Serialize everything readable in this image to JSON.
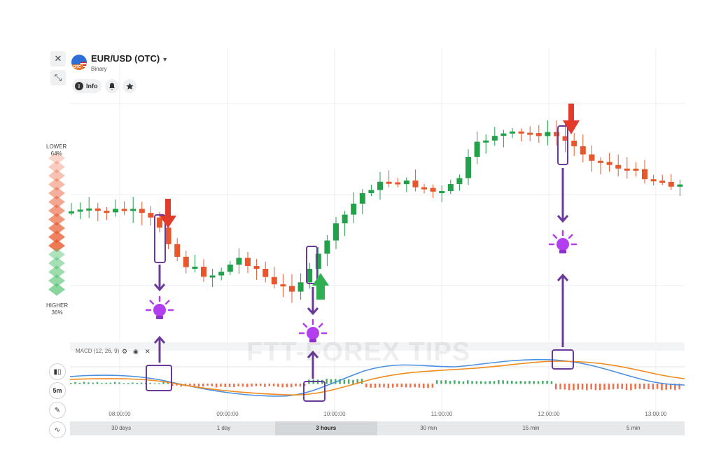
{
  "asset": {
    "name": "EUR/USD (OTC)",
    "type": "Binary",
    "badge": "OTC"
  },
  "controls": {
    "close_icon": "✕",
    "collapse_icon": "⤡",
    "info_label": "Info"
  },
  "sentiment": {
    "lower_label": "LOWER",
    "lower_pct": "64%",
    "higher_label": "HIGHER",
    "higher_pct": "36%"
  },
  "indicator": {
    "label": "MACD (12, 26, 9)"
  },
  "timeframe": "5m",
  "time_axis": [
    "08:00:00",
    "09:00:00",
    "10:00:00",
    "11:00:00",
    "12:00:00",
    "13:00:00"
  ],
  "periods": [
    {
      "label": "30 days",
      "active": false
    },
    {
      "label": "1 day",
      "active": false
    },
    {
      "label": "3 hours",
      "active": true
    },
    {
      "label": "30 min",
      "active": false
    },
    {
      "label": "15 min",
      "active": false
    },
    {
      "label": "5 min",
      "active": false
    }
  ],
  "watermark": "FTT-FOREX TIPS",
  "colors": {
    "up": "#22a04a",
    "down": "#e8572b",
    "macd_line": "#4a8fe0",
    "signal_line": "#f08a1c",
    "annotation": "#6a3a9a"
  },
  "chart_data": {
    "type": "candlestick",
    "candles_trend": [
      [
        "08:00",
        "falling"
      ],
      [
        "08:20",
        "rising"
      ],
      [
        "08:40",
        "falling"
      ],
      [
        "09:00",
        "rising"
      ],
      [
        "09:40",
        "falling"
      ],
      [
        "10:00",
        "rising"
      ],
      [
        "10:30",
        "rising"
      ],
      [
        "11:00",
        "falling"
      ],
      [
        "11:30",
        "rising"
      ],
      [
        "12:00",
        "falling"
      ],
      [
        "12:30",
        "falling"
      ],
      [
        "13:00",
        "falling"
      ]
    ],
    "annotations": [
      {
        "time": "08:25",
        "signal": "down",
        "icon": "lightbulb-icon"
      },
      {
        "time": "09:50",
        "signal": "up",
        "icon": "lightbulb-icon"
      },
      {
        "time": "12:05",
        "signal": "down",
        "icon": "lightbulb-icon"
      }
    ]
  }
}
